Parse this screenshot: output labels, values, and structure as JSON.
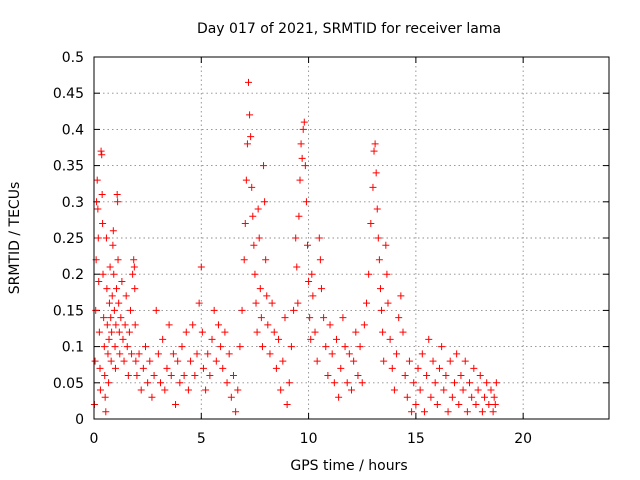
{
  "chart_data": {
    "type": "scatter",
    "title": "Day 017 of 2021, SRMTID for receiver lama",
    "xlabel": "GPS time / hours",
    "ylabel": "SRMTID / TECUs",
    "xlim": [
      0,
      24
    ],
    "ylim": [
      0,
      0.5
    ],
    "x_ticks": [
      0,
      5,
      10,
      15,
      20
    ],
    "x_tick_labels": [
      "0",
      "5",
      "10",
      "15",
      "20"
    ],
    "y_ticks": [
      0,
      0.05,
      0.1,
      0.15,
      0.2,
      0.25,
      0.3,
      0.35,
      0.4,
      0.45,
      0.5
    ],
    "y_tick_labels": [
      "0",
      "0.05",
      "0.1",
      "0.15",
      "0.2",
      "0.25",
      "0.3",
      "0.35",
      "0.4",
      "0.45",
      "0.5"
    ],
    "grid": true,
    "marker": "plus",
    "color": "#ff0000",
    "series": [
      {
        "name": "SRMTID",
        "points": [
          [
            0.02,
            0.02
          ],
          [
            0.05,
            0.08
          ],
          [
            0.08,
            0.15
          ],
          [
            0.1,
            0.22
          ],
          [
            0.12,
            0.3
          ],
          [
            0.15,
            0.33
          ],
          [
            0.18,
            0.29
          ],
          [
            0.2,
            0.25
          ],
          [
            0.22,
            0.19
          ],
          [
            0.25,
            0.12
          ],
          [
            0.28,
            0.07
          ],
          [
            0.3,
            0.04
          ],
          [
            0.33,
            0.37
          ],
          [
            0.36,
            0.365
          ],
          [
            0.38,
            0.31
          ],
          [
            0.4,
            0.27
          ],
          [
            0.42,
            0.2
          ],
          [
            0.45,
            0.14
          ],
          [
            0.48,
            0.1
          ],
          [
            0.5,
            0.06
          ],
          [
            0.52,
            0.03
          ],
          [
            0.55,
            0.01
          ],
          [
            0.58,
            0.25
          ],
          [
            0.6,
            0.18
          ],
          [
            0.62,
            0.13
          ],
          [
            0.65,
            0.09
          ],
          [
            0.68,
            0.05
          ],
          [
            0.7,
            0.11
          ],
          [
            0.72,
            0.16
          ],
          [
            0.75,
            0.21
          ],
          [
            0.78,
            0.14
          ],
          [
            0.8,
            0.08
          ],
          [
            0.82,
            0.12
          ],
          [
            0.85,
            0.17
          ],
          [
            0.88,
            0.24
          ],
          [
            0.9,
            0.26
          ],
          [
            0.92,
            0.2
          ],
          [
            0.95,
            0.15
          ],
          [
            0.98,
            0.1
          ],
          [
            1.0,
            0.07
          ],
          [
            1.02,
            0.13
          ],
          [
            1.05,
            0.18
          ],
          [
            1.08,
            0.31
          ],
          [
            1.1,
            0.3
          ],
          [
            1.12,
            0.22
          ],
          [
            1.15,
            0.16
          ],
          [
            1.18,
            0.12
          ],
          [
            1.2,
            0.09
          ],
          [
            1.25,
            0.14
          ],
          [
            1.3,
            0.19
          ],
          [
            1.35,
            0.11
          ],
          [
            1.4,
            0.08
          ],
          [
            1.45,
            0.13
          ],
          [
            1.5,
            0.17
          ],
          [
            1.55,
            0.1
          ],
          [
            1.6,
            0.06
          ],
          [
            1.65,
            0.12
          ],
          [
            1.7,
            0.15
          ],
          [
            1.75,
            0.09
          ],
          [
            1.8,
            0.2
          ],
          [
            1.85,
            0.22
          ],
          [
            1.88,
            0.21
          ],
          [
            1.9,
            0.18
          ],
          [
            1.92,
            0.13
          ],
          [
            1.95,
            0.08
          ],
          [
            2.0,
            0.06
          ],
          [
            2.1,
            0.09
          ],
          [
            2.2,
            0.04
          ],
          [
            2.3,
            0.07
          ],
          [
            2.4,
            0.1
          ],
          [
            2.5,
            0.05
          ],
          [
            2.6,
            0.08
          ],
          [
            2.7,
            0.03
          ],
          [
            2.8,
            0.06
          ],
          [
            2.9,
            0.15
          ],
          [
            3.0,
            0.09
          ],
          [
            3.1,
            0.05
          ],
          [
            3.2,
            0.11
          ],
          [
            3.3,
            0.04
          ],
          [
            3.4,
            0.07
          ],
          [
            3.5,
            0.13
          ],
          [
            3.6,
            0.06
          ],
          [
            3.7,
            0.09
          ],
          [
            3.8,
            0.02
          ],
          [
            3.9,
            0.08
          ],
          [
            4.0,
            0.05
          ],
          [
            4.1,
            0.1
          ],
          [
            4.2,
            0.06
          ],
          [
            4.3,
            0.12
          ],
          [
            4.4,
            0.04
          ],
          [
            4.5,
            0.08
          ],
          [
            4.6,
            0.13
          ],
          [
            4.7,
            0.06
          ],
          [
            4.8,
            0.09
          ],
          [
            4.9,
            0.16
          ],
          [
            5.0,
            0.21
          ],
          [
            5.05,
            0.12
          ],
          [
            5.1,
            0.07
          ],
          [
            5.2,
            0.04
          ],
          [
            5.3,
            0.09
          ],
          [
            5.4,
            0.06
          ],
          [
            5.5,
            0.11
          ],
          [
            5.6,
            0.15
          ],
          [
            5.7,
            0.08
          ],
          [
            5.8,
            0.13
          ],
          [
            5.9,
            0.1
          ],
          [
            6.0,
            0.07
          ],
          [
            6.1,
            0.12
          ],
          [
            6.2,
            0.05
          ],
          [
            6.3,
            0.09
          ],
          [
            6.4,
            0.03
          ],
          [
            6.5,
            0.06
          ],
          [
            6.6,
            0.01
          ],
          [
            6.7,
            0.04
          ],
          [
            6.8,
            0.1
          ],
          [
            6.9,
            0.15
          ],
          [
            7.0,
            0.22
          ],
          [
            7.05,
            0.27
          ],
          [
            7.1,
            0.33
          ],
          [
            7.15,
            0.38
          ],
          [
            7.2,
            0.465
          ],
          [
            7.25,
            0.42
          ],
          [
            7.3,
            0.39
          ],
          [
            7.35,
            0.32
          ],
          [
            7.4,
            0.28
          ],
          [
            7.45,
            0.24
          ],
          [
            7.5,
            0.2
          ],
          [
            7.55,
            0.16
          ],
          [
            7.6,
            0.12
          ],
          [
            7.65,
            0.29
          ],
          [
            7.7,
            0.25
          ],
          [
            7.75,
            0.18
          ],
          [
            7.8,
            0.14
          ],
          [
            7.85,
            0.1
          ],
          [
            7.9,
            0.35
          ],
          [
            7.95,
            0.3
          ],
          [
            8.0,
            0.22
          ],
          [
            8.05,
            0.17
          ],
          [
            8.1,
            0.13
          ],
          [
            8.2,
            0.09
          ],
          [
            8.3,
            0.16
          ],
          [
            8.4,
            0.12
          ],
          [
            8.5,
            0.07
          ],
          [
            8.6,
            0.11
          ],
          [
            8.7,
            0.04
          ],
          [
            8.8,
            0.08
          ],
          [
            8.9,
            0.14
          ],
          [
            9.0,
            0.02
          ],
          [
            9.1,
            0.05
          ],
          [
            9.2,
            0.1
          ],
          [
            9.3,
            0.15
          ],
          [
            9.4,
            0.25
          ],
          [
            9.45,
            0.21
          ],
          [
            9.5,
            0.16
          ],
          [
            9.55,
            0.28
          ],
          [
            9.6,
            0.33
          ],
          [
            9.65,
            0.38
          ],
          [
            9.7,
            0.36
          ],
          [
            9.75,
            0.4
          ],
          [
            9.8,
            0.41
          ],
          [
            9.85,
            0.35
          ],
          [
            9.9,
            0.3
          ],
          [
            9.95,
            0.24
          ],
          [
            10.0,
            0.19
          ],
          [
            10.05,
            0.14
          ],
          [
            10.1,
            0.11
          ],
          [
            10.15,
            0.2
          ],
          [
            10.2,
            0.17
          ],
          [
            10.3,
            0.12
          ],
          [
            10.4,
            0.08
          ],
          [
            10.5,
            0.25
          ],
          [
            10.55,
            0.22
          ],
          [
            10.6,
            0.18
          ],
          [
            10.7,
            0.14
          ],
          [
            10.8,
            0.1
          ],
          [
            10.9,
            0.06
          ],
          [
            11.0,
            0.13
          ],
          [
            11.1,
            0.09
          ],
          [
            11.2,
            0.05
          ],
          [
            11.3,
            0.11
          ],
          [
            11.4,
            0.03
          ],
          [
            11.5,
            0.07
          ],
          [
            11.6,
            0.14
          ],
          [
            11.7,
            0.1
          ],
          [
            11.8,
            0.05
          ],
          [
            11.9,
            0.09
          ],
          [
            12.0,
            0.04
          ],
          [
            12.1,
            0.08
          ],
          [
            12.2,
            0.12
          ],
          [
            12.3,
            0.06
          ],
          [
            12.4,
            0.1
          ],
          [
            12.5,
            0.05
          ],
          [
            12.6,
            0.13
          ],
          [
            12.7,
            0.16
          ],
          [
            12.8,
            0.2
          ],
          [
            12.9,
            0.27
          ],
          [
            13.0,
            0.32
          ],
          [
            13.05,
            0.37
          ],
          [
            13.1,
            0.38
          ],
          [
            13.15,
            0.34
          ],
          [
            13.2,
            0.29
          ],
          [
            13.25,
            0.25
          ],
          [
            13.3,
            0.22
          ],
          [
            13.35,
            0.18
          ],
          [
            13.4,
            0.15
          ],
          [
            13.45,
            0.12
          ],
          [
            13.5,
            0.08
          ],
          [
            13.6,
            0.24
          ],
          [
            13.65,
            0.2
          ],
          [
            13.7,
            0.16
          ],
          [
            13.8,
            0.11
          ],
          [
            13.9,
            0.07
          ],
          [
            14.0,
            0.04
          ],
          [
            14.1,
            0.09
          ],
          [
            14.2,
            0.14
          ],
          [
            14.3,
            0.17
          ],
          [
            14.4,
            0.12
          ],
          [
            14.5,
            0.06
          ],
          [
            14.6,
            0.03
          ],
          [
            14.7,
            0.08
          ],
          [
            14.8,
            0.01
          ],
          [
            14.9,
            0.05
          ],
          [
            15.0,
            0.02
          ],
          [
            15.1,
            0.07
          ],
          [
            15.2,
            0.04
          ],
          [
            15.3,
            0.09
          ],
          [
            15.4,
            0.01
          ],
          [
            15.5,
            0.06
          ],
          [
            15.6,
            0.11
          ],
          [
            15.7,
            0.03
          ],
          [
            15.8,
            0.08
          ],
          [
            15.9,
            0.05
          ],
          [
            16.0,
            0.02
          ],
          [
            16.1,
            0.07
          ],
          [
            16.2,
            0.1
          ],
          [
            16.3,
            0.04
          ],
          [
            16.4,
            0.06
          ],
          [
            16.5,
            0.01
          ],
          [
            16.6,
            0.08
          ],
          [
            16.7,
            0.03
          ],
          [
            16.8,
            0.05
          ],
          [
            16.9,
            0.09
          ],
          [
            17.0,
            0.02
          ],
          [
            17.1,
            0.06
          ],
          [
            17.2,
            0.04
          ],
          [
            17.3,
            0.08
          ],
          [
            17.4,
            0.01
          ],
          [
            17.5,
            0.05
          ],
          [
            17.6,
            0.03
          ],
          [
            17.7,
            0.07
          ],
          [
            17.8,
            0.02
          ],
          [
            17.9,
            0.04
          ],
          [
            18.0,
            0.06
          ],
          [
            18.1,
            0.01
          ],
          [
            18.2,
            0.03
          ],
          [
            18.3,
            0.05
          ],
          [
            18.4,
            0.02
          ],
          [
            18.5,
            0.04
          ],
          [
            18.6,
            0.01
          ],
          [
            18.65,
            0.03
          ],
          [
            18.7,
            0.02
          ],
          [
            18.75,
            0.05
          ]
        ]
      }
    ]
  }
}
